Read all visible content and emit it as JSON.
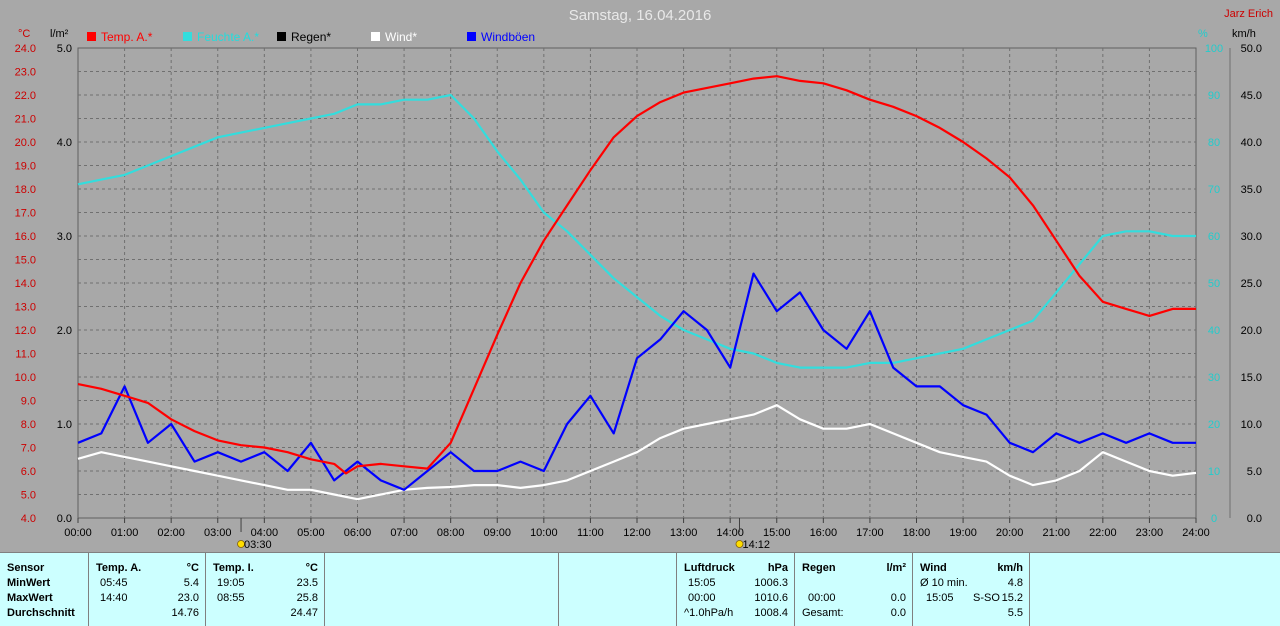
{
  "header": {
    "title": "Samstag, 16.04.2016",
    "author": "Jarz Erich",
    "unit_temp": "°C",
    "unit_rain": "l/m²",
    "unit_humidity": "%",
    "unit_wind": "km/h"
  },
  "colors": {
    "background": "#a8a8a8",
    "temp": "#ff0000",
    "humidity": "#33dddd",
    "rain": "#000000",
    "wind": "#ffffff",
    "gust": "#0000ff",
    "stats_bg": "#ccffff"
  },
  "chart_data": {
    "type": "line",
    "title": "Samstag, 16.04.2016",
    "x_ticks": [
      "00:00",
      "01:00",
      "02:00",
      "03:00",
      "04:00",
      "05:00",
      "06:00",
      "07:00",
      "08:00",
      "09:00",
      "10:00",
      "11:00",
      "12:00",
      "13:00",
      "14:00",
      "15:00",
      "16:00",
      "17:00",
      "18:00",
      "19:00",
      "20:00",
      "21:00",
      "22:00",
      "23:00",
      "24:00"
    ],
    "axes": {
      "temp": {
        "label": "°C",
        "min": 4.0,
        "max": 24.0,
        "ticks": [
          "4.0",
          "5.0",
          "6.0",
          "7.0",
          "8.0",
          "9.0",
          "10.0",
          "11.0",
          "12.0",
          "13.0",
          "14.0",
          "15.0",
          "16.0",
          "17.0",
          "18.0",
          "19.0",
          "20.0",
          "21.0",
          "22.0",
          "23.0",
          "24.0"
        ]
      },
      "rain": {
        "label": "l/m²",
        "min": 0.0,
        "max": 5.0,
        "ticks": [
          "0.0",
          "1.0",
          "2.0",
          "3.0",
          "4.0",
          "5.0"
        ]
      },
      "humidity": {
        "label": "%",
        "min": 0,
        "max": 100,
        "ticks": [
          "0",
          "10",
          "20",
          "30",
          "40",
          "50",
          "60",
          "70",
          "80",
          "90",
          "100"
        ]
      },
      "wind": {
        "label": "km/h",
        "min": 0.0,
        "max": 50.0,
        "ticks": [
          "0.0",
          "5.0",
          "10.0",
          "15.0",
          "20.0",
          "25.0",
          "30.0",
          "35.0",
          "40.0",
          "45.0",
          "50.0"
        ]
      }
    },
    "legend": [
      "Temp. A.*",
      "Feuchte A.*",
      "Regen*",
      "Wind*",
      "Windböen"
    ],
    "markers": [
      {
        "hour": 3.5,
        "label": "03:30"
      },
      {
        "hour": 14.2,
        "label": "14:12"
      }
    ],
    "grid": true,
    "series": [
      {
        "name": "Temp. A.*",
        "axis": "temp",
        "color": "#ff0000",
        "x": [
          0,
          0.5,
          1,
          1.5,
          2,
          2.5,
          3,
          3.5,
          4,
          4.5,
          5,
          5.5,
          5.75,
          6,
          6.5,
          7,
          7.5,
          8,
          8.5,
          9,
          9.5,
          10,
          10.5,
          11,
          11.5,
          12,
          12.5,
          13,
          13.5,
          14,
          14.5,
          15,
          15.5,
          16,
          16.5,
          17,
          17.5,
          18,
          18.5,
          19,
          19.5,
          20,
          20.5,
          21,
          21.5,
          22,
          22.5,
          23,
          23.5,
          24
        ],
        "y": [
          9.7,
          9.5,
          9.2,
          8.9,
          8.2,
          7.7,
          7.3,
          7.1,
          7.0,
          6.8,
          6.5,
          6.3,
          5.9,
          6.2,
          6.3,
          6.2,
          6.1,
          7.2,
          9.5,
          11.8,
          14.0,
          15.8,
          17.3,
          18.8,
          20.2,
          21.1,
          21.7,
          22.1,
          22.3,
          22.5,
          22.7,
          22.8,
          22.6,
          22.5,
          22.2,
          21.8,
          21.5,
          21.1,
          20.6,
          20.0,
          19.3,
          18.5,
          17.3,
          15.8,
          14.3,
          13.2,
          12.9,
          12.6,
          12.9,
          12.9
        ]
      },
      {
        "name": "Feuchte A.*",
        "axis": "humidity",
        "color": "#33dddd",
        "x": [
          0,
          0.5,
          1,
          1.5,
          2,
          2.5,
          3,
          3.5,
          4,
          4.5,
          5,
          5.5,
          6,
          6.5,
          7,
          7.5,
          8,
          8.5,
          9,
          9.5,
          10,
          10.5,
          11,
          11.5,
          12,
          12.5,
          13,
          13.5,
          14,
          14.5,
          15,
          15.5,
          16,
          16.5,
          17,
          17.5,
          18,
          18.5,
          19,
          19.5,
          20,
          20.5,
          21,
          21.5,
          22,
          22.5,
          23,
          23.5,
          24
        ],
        "y": [
          71,
          72,
          73,
          75,
          77,
          79,
          81,
          82,
          83,
          84,
          85,
          86,
          88,
          88,
          89,
          89,
          90,
          85,
          78,
          72,
          65,
          61,
          56,
          51,
          47,
          43,
          40,
          38,
          36,
          35,
          33,
          32,
          32,
          32,
          33,
          33,
          34,
          35,
          36,
          38,
          40,
          42,
          48,
          54,
          60,
          61,
          61,
          60,
          60
        ]
      },
      {
        "name": "Wind*",
        "axis": "wind",
        "color": "#ffffff",
        "x": [
          0,
          0.5,
          1,
          1.5,
          2,
          2.5,
          3,
          3.5,
          4,
          4.5,
          5,
          5.5,
          6,
          6.5,
          7,
          7.5,
          8,
          8.5,
          9,
          9.5,
          10,
          10.5,
          11,
          11.5,
          12,
          12.5,
          13,
          13.5,
          14,
          14.5,
          15,
          15.5,
          16,
          16.5,
          17,
          17.5,
          18,
          18.5,
          19,
          19.5,
          20,
          20.5,
          21,
          21.5,
          22,
          22.5,
          23,
          23.5,
          24
        ],
        "y": [
          6.3,
          7,
          6.5,
          6,
          5.5,
          5,
          4.5,
          4,
          3.5,
          3,
          3,
          2.5,
          2,
          2.5,
          3,
          3.2,
          3.3,
          3.5,
          3.5,
          3.2,
          3.5,
          4,
          5,
          6,
          7,
          8.5,
          9.5,
          10,
          10.5,
          11,
          12,
          10.5,
          9.5,
          9.5,
          10,
          9,
          8,
          7,
          6.5,
          6,
          4.5,
          3.5,
          4,
          5,
          7,
          6,
          5,
          4.5,
          4.8
        ]
      },
      {
        "name": "Windböen",
        "axis": "wind",
        "color": "#0000ff",
        "x": [
          0,
          0.5,
          1,
          1.5,
          2,
          2.5,
          3,
          3.5,
          4,
          4.5,
          5,
          5.5,
          6,
          6.5,
          7,
          7.5,
          8,
          8.5,
          9,
          9.5,
          10,
          10.5,
          11,
          11.5,
          12,
          12.5,
          13,
          13.5,
          14,
          14.5,
          15,
          15.5,
          16,
          16.5,
          17,
          17.5,
          18,
          18.5,
          19,
          19.5,
          20,
          20.5,
          21,
          21.5,
          22,
          22.5,
          23,
          23.5,
          24
        ],
        "y": [
          8,
          9,
          14,
          8,
          10,
          6,
          7,
          6,
          7,
          5,
          8,
          4,
          6,
          4,
          3,
          5,
          7,
          5,
          5,
          6,
          5,
          10,
          13,
          9,
          17,
          19,
          22,
          20,
          16,
          26,
          22,
          24,
          20,
          18,
          22,
          16,
          14,
          14,
          12,
          11,
          8,
          7,
          9,
          8,
          9,
          8,
          9,
          8,
          8
        ]
      }
    ]
  },
  "stats": {
    "sensor": {
      "header": "Sensor",
      "rows": [
        "MinWert",
        "MaxWert",
        "Durchschnitt"
      ]
    },
    "temp_a": {
      "header": "Temp. A.",
      "unit": "°C",
      "times": [
        "05:45",
        "14:40",
        ""
      ],
      "values": [
        "5.4",
        "23.0",
        "14.76"
      ]
    },
    "temp_i": {
      "header": "Temp. I.",
      "unit": "°C",
      "times": [
        "19:05",
        "08:55",
        ""
      ],
      "values": [
        "23.5",
        "25.8",
        "24.47"
      ]
    },
    "pressure": {
      "header": "Luftdruck",
      "unit": "hPa",
      "times": [
        "15:05",
        "00:00",
        "^1.0hPa/h"
      ],
      "values": [
        "1006.3",
        "1010.6",
        "1008.4"
      ]
    },
    "rain": {
      "header": "Regen",
      "unit": "l/m²",
      "times": [
        "",
        "00:00",
        "Gesamt:"
      ],
      "values": [
        "",
        "0.0",
        "0.0"
      ]
    },
    "wind": {
      "header": "Wind",
      "unit": "km/h",
      "labels": [
        "Ø 10 min.",
        "15:05",
        ""
      ],
      "dirs": [
        "",
        "S-SO",
        ""
      ],
      "values": [
        "4.8",
        "15.2",
        "5.5"
      ]
    }
  }
}
